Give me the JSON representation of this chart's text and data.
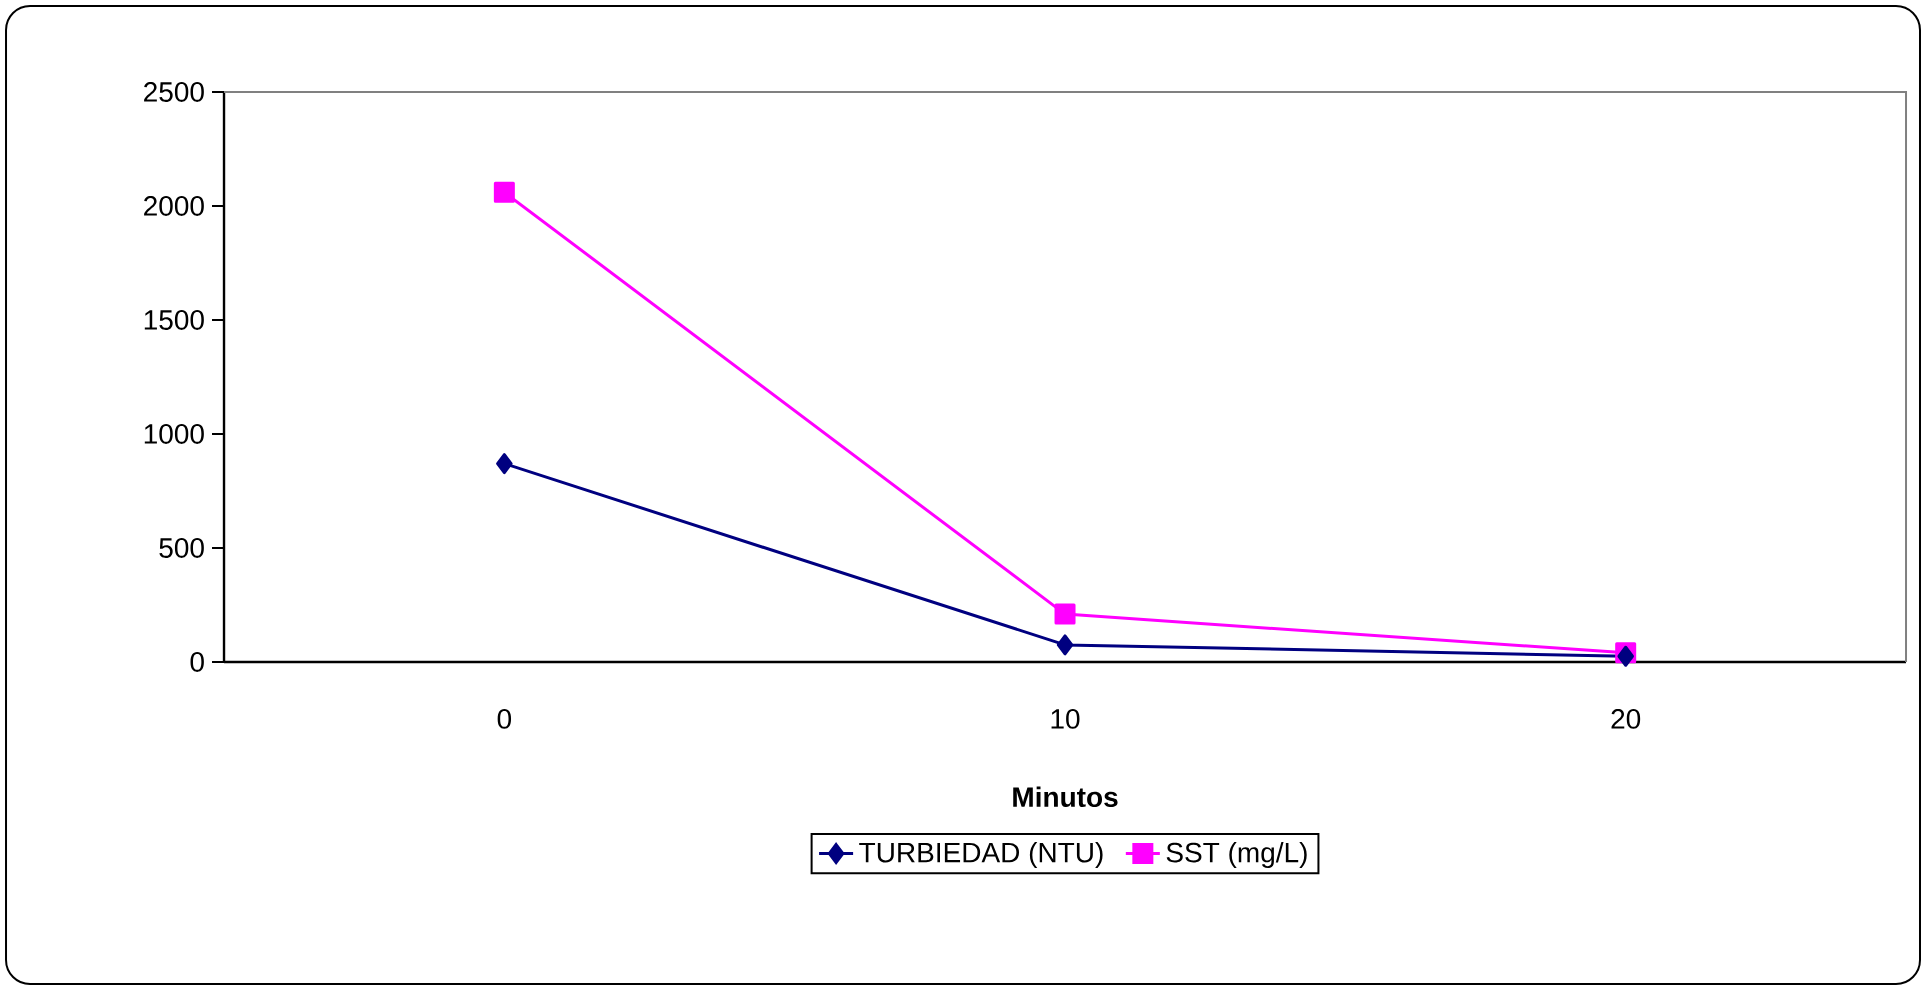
{
  "chart_data": {
    "type": "line",
    "xlabel": "Minutos",
    "categories": [
      "0",
      "10",
      "20"
    ],
    "series": [
      {
        "name": "TURBIEDAD (NTU)",
        "color": "#000080",
        "values": [
          870,
          75,
          25
        ],
        "marker": "diamond"
      },
      {
        "name": "SST (mg/L)",
        "color": "#ff00ff",
        "values": [
          2060,
          210,
          40
        ],
        "marker": "square"
      }
    ],
    "ylim": [
      0,
      2500
    ],
    "yticks": [
      0,
      500,
      1000,
      1500,
      2000,
      2500
    ],
    "grid": false,
    "legend": "bottom",
    "line_style": "solid"
  }
}
